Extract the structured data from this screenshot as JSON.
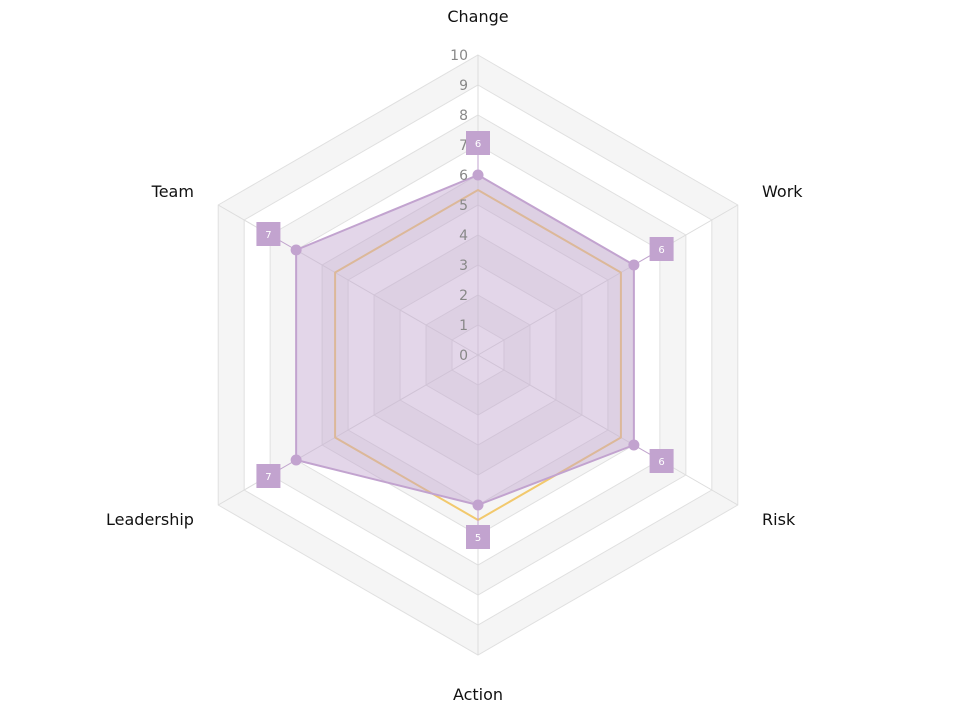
{
  "chart_data": {
    "type": "radar",
    "categories": [
      "Change",
      "Work",
      "Risk",
      "Action",
      "Leadership",
      "Team"
    ],
    "rlim": [
      0,
      10
    ],
    "ticks": [
      "0",
      "1",
      "2",
      "3",
      "4",
      "5",
      "6",
      "7",
      "8",
      "9",
      "10"
    ],
    "grid": true,
    "legend": "none",
    "series": [
      {
        "values": [
          5.5,
          5.5,
          5.5,
          5.5,
          5.5,
          5.5
        ],
        "color": "#f2c96d",
        "fill": "none",
        "markers": false,
        "labels": false
      },
      {
        "values": [
          6,
          6,
          6,
          5,
          7,
          7
        ],
        "data_labels": [
          "6",
          "6",
          "6",
          "5",
          "7",
          "7"
        ],
        "color": "#c2a3cf",
        "fill": "rgba(194,163,207,0.45)",
        "markers": true,
        "labels": true
      }
    ]
  }
}
